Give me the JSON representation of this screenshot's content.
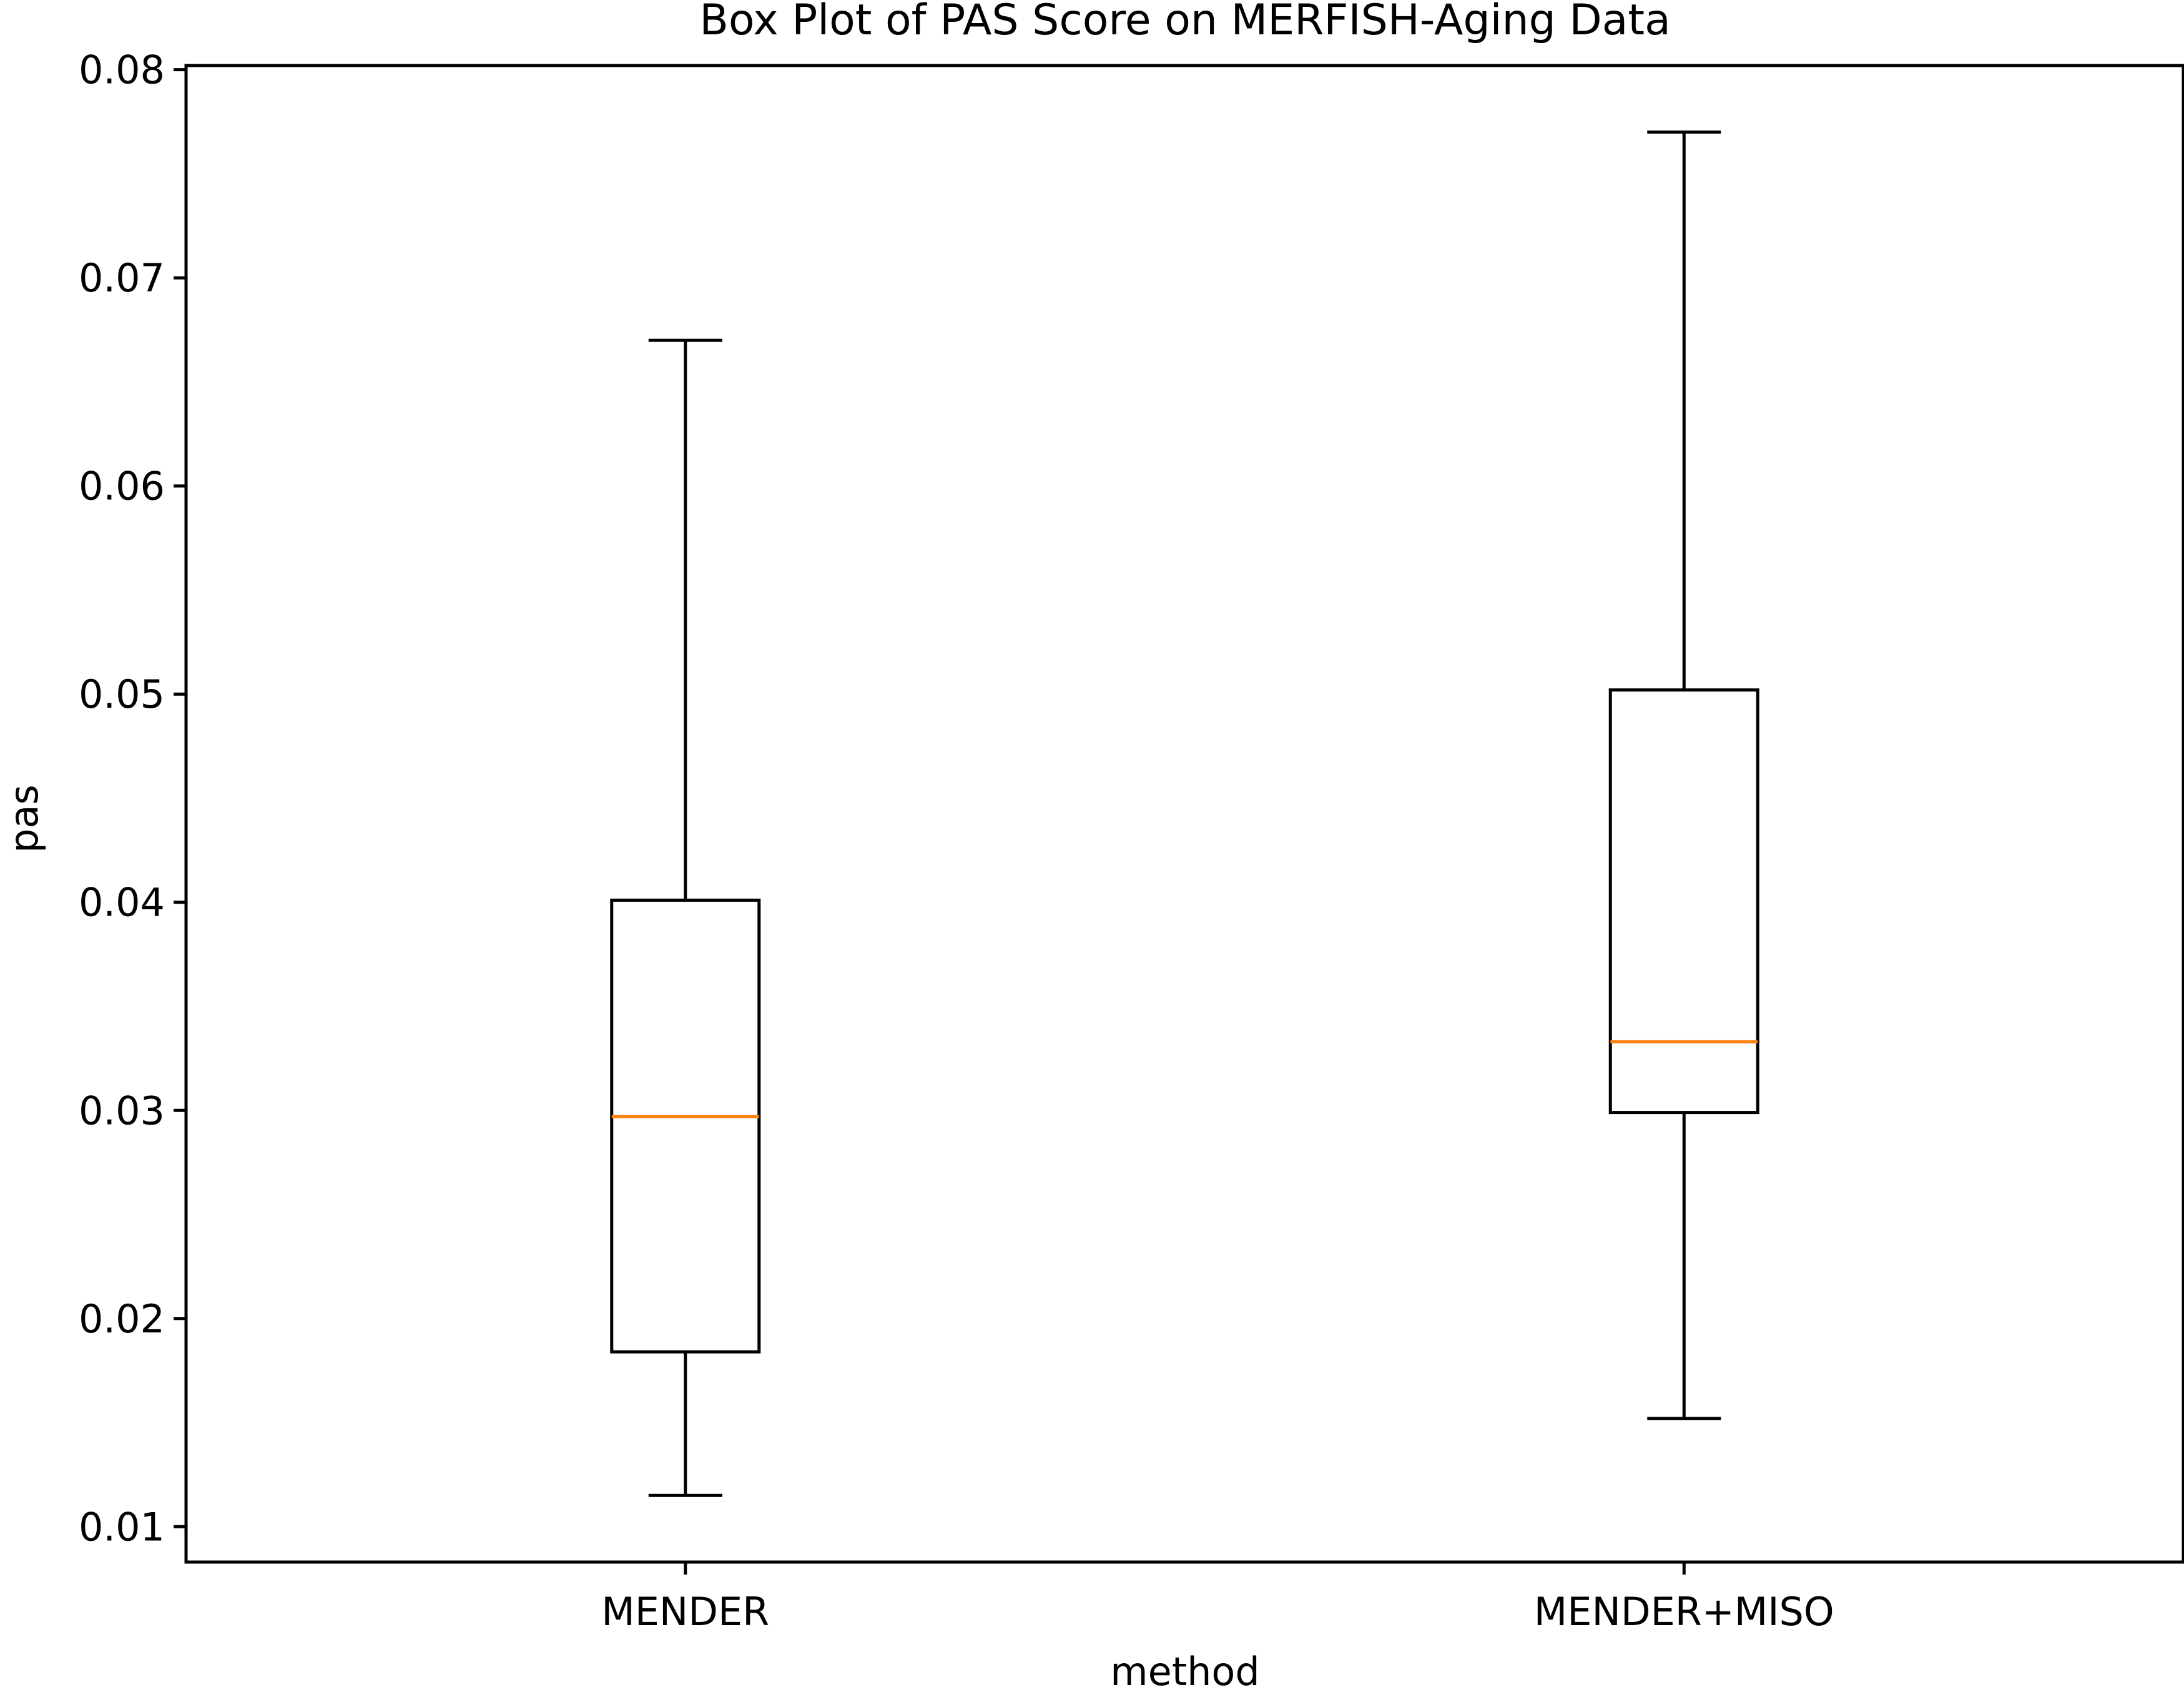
{
  "chart_data": {
    "type": "box",
    "title": "Box Plot of PAS Score on MERFISH-Aging Data",
    "xlabel": "method",
    "ylabel": "pas",
    "categories": [
      "MENDER",
      "MENDER+MISO"
    ],
    "boxes": [
      {
        "name": "MENDER",
        "whisker_low": 0.0115,
        "q1": 0.0184,
        "median": 0.0297,
        "q3": 0.0401,
        "whisker_high": 0.067
      },
      {
        "name": "MENDER+MISO",
        "whisker_low": 0.0152,
        "q1": 0.0299,
        "median": 0.0333,
        "q3": 0.0502,
        "whisker_high": 0.077
      }
    ],
    "yticks": [
      0.01,
      0.02,
      0.03,
      0.04,
      0.05,
      0.06,
      0.07,
      0.08
    ],
    "ytick_labels": [
      "0.01",
      "0.02",
      "0.03",
      "0.04",
      "0.05",
      "0.06",
      "0.07",
      "0.08"
    ],
    "ylim": [
      0.0083,
      0.0802
    ],
    "grid": false,
    "colors": {
      "box": "#000000",
      "median": "#ff7f0e",
      "axes": "#000000"
    }
  }
}
